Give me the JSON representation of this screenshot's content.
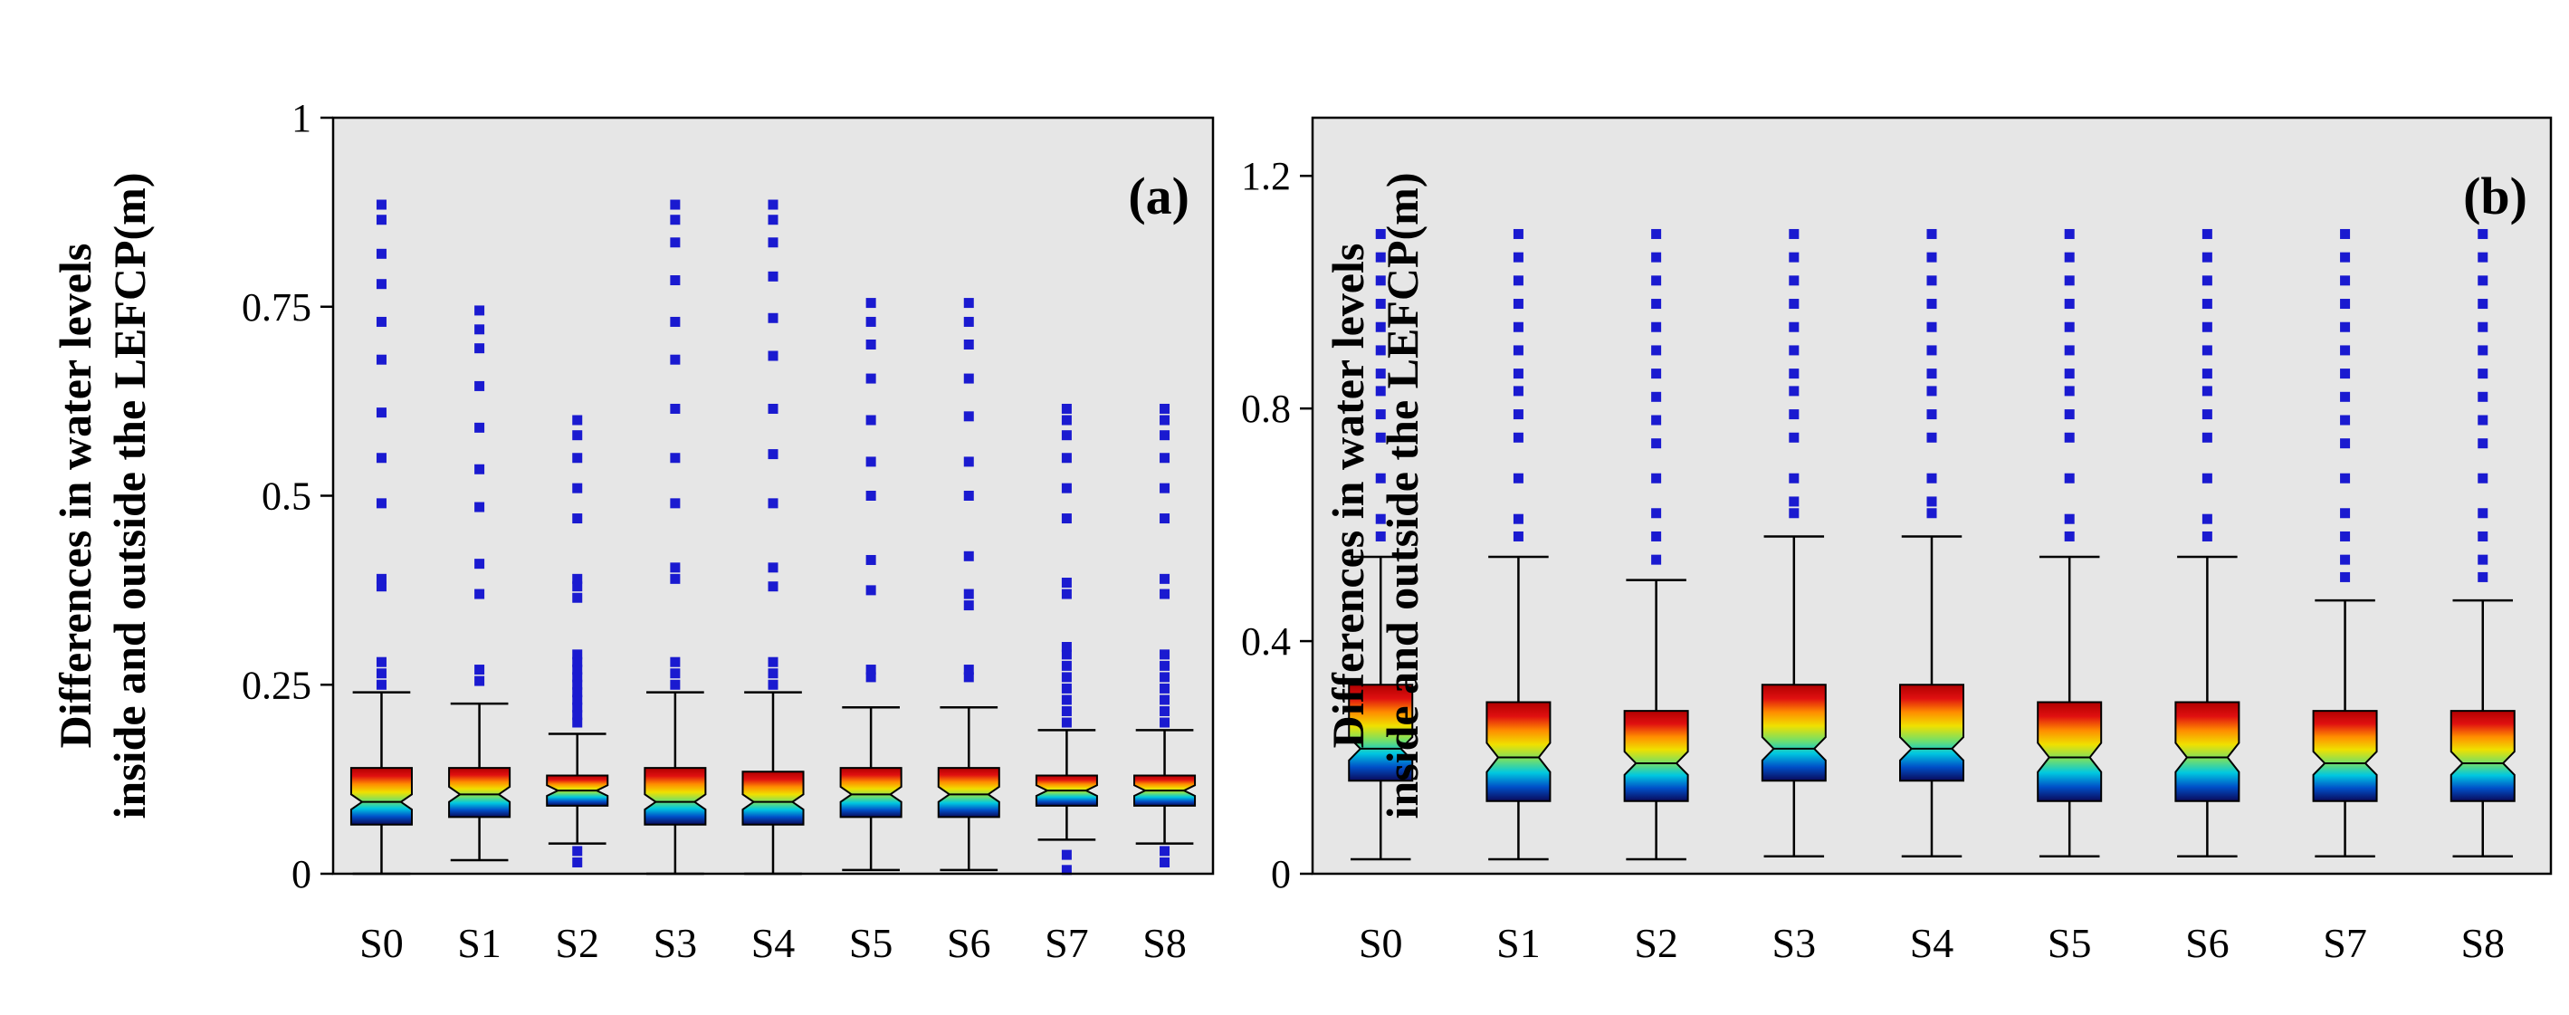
{
  "chart_data": [
    {
      "type": "boxplot",
      "panel_label": "(a)",
      "ylabel_lines": [
        "Differences in water levels",
        "inside and outside the LEFCP(m)"
      ],
      "xlabel": "",
      "ylim": [
        0,
        1
      ],
      "yticks": [
        0,
        0.25,
        0.5,
        0.75,
        1
      ],
      "ytick_labels": [
        "0",
        "0.25",
        "0.5",
        "0.75",
        "1"
      ],
      "categories": [
        "S0",
        "S1",
        "S2",
        "S3",
        "S4",
        "S5",
        "S6",
        "S7",
        "S8"
      ],
      "boxes": [
        {
          "name": "S0",
          "whisker_low": 0.0,
          "q1": 0.065,
          "median": 0.095,
          "q3": 0.14,
          "whisker_high": 0.24,
          "notch_low": 0.085,
          "notch_high": 0.105,
          "outliers": [
            0.25,
            0.265,
            0.28,
            0.38,
            0.39,
            0.49,
            0.55,
            0.61,
            0.68,
            0.73,
            0.78,
            0.82,
            0.865,
            0.885
          ]
        },
        {
          "name": "S1",
          "whisker_low": 0.018,
          "q1": 0.075,
          "median": 0.105,
          "q3": 0.14,
          "whisker_high": 0.225,
          "notch_low": 0.095,
          "notch_high": 0.115,
          "outliers": [
            0.255,
            0.27,
            0.37,
            0.41,
            0.485,
            0.535,
            0.59,
            0.645,
            0.695,
            0.72,
            0.745
          ]
        },
        {
          "name": "S2",
          "whisker_low": 0.04,
          "q1": 0.09,
          "median": 0.11,
          "q3": 0.13,
          "whisker_high": 0.185,
          "notch_low": 0.103,
          "notch_high": 0.117,
          "outliers": [
            0.015,
            0.03,
            0.2,
            0.21,
            0.22,
            0.23,
            0.24,
            0.25,
            0.26,
            0.27,
            0.28,
            0.29,
            0.365,
            0.38,
            0.39,
            0.47,
            0.51,
            0.55,
            0.58,
            0.6
          ]
        },
        {
          "name": "S3",
          "whisker_low": 0.0,
          "q1": 0.065,
          "median": 0.095,
          "q3": 0.14,
          "whisker_high": 0.24,
          "notch_low": 0.085,
          "notch_high": 0.105,
          "outliers": [
            0.25,
            0.265,
            0.28,
            0.39,
            0.405,
            0.49,
            0.55,
            0.615,
            0.68,
            0.73,
            0.785,
            0.835,
            0.865,
            0.885
          ]
        },
        {
          "name": "S4",
          "whisker_low": 0.0,
          "q1": 0.065,
          "median": 0.095,
          "q3": 0.135,
          "whisker_high": 0.24,
          "notch_low": 0.085,
          "notch_high": 0.105,
          "outliers": [
            0.25,
            0.265,
            0.28,
            0.38,
            0.405,
            0.49,
            0.555,
            0.615,
            0.685,
            0.735,
            0.79,
            0.835,
            0.865,
            0.885
          ]
        },
        {
          "name": "S5",
          "whisker_low": 0.005,
          "q1": 0.075,
          "median": 0.105,
          "q3": 0.14,
          "whisker_high": 0.22,
          "notch_low": 0.095,
          "notch_high": 0.115,
          "outliers": [
            0.26,
            0.27,
            0.375,
            0.415,
            0.5,
            0.545,
            0.6,
            0.655,
            0.7,
            0.73,
            0.755
          ]
        },
        {
          "name": "S6",
          "whisker_low": 0.005,
          "q1": 0.075,
          "median": 0.105,
          "q3": 0.14,
          "whisker_high": 0.22,
          "notch_low": 0.095,
          "notch_high": 0.115,
          "outliers": [
            0.26,
            0.27,
            0.355,
            0.37,
            0.42,
            0.5,
            0.545,
            0.605,
            0.655,
            0.7,
            0.73,
            0.755
          ]
        },
        {
          "name": "S7",
          "whisker_low": 0.045,
          "q1": 0.09,
          "median": 0.11,
          "q3": 0.13,
          "whisker_high": 0.19,
          "notch_low": 0.103,
          "notch_high": 0.117,
          "outliers": [
            0.005,
            0.025,
            0.2,
            0.215,
            0.23,
            0.245,
            0.26,
            0.275,
            0.29,
            0.3,
            0.37,
            0.385,
            0.47,
            0.51,
            0.55,
            0.58,
            0.6,
            0.615
          ]
        },
        {
          "name": "S8",
          "whisker_low": 0.04,
          "q1": 0.09,
          "median": 0.11,
          "q3": 0.13,
          "whisker_high": 0.19,
          "notch_low": 0.103,
          "notch_high": 0.117,
          "outliers": [
            0.015,
            0.03,
            0.2,
            0.215,
            0.23,
            0.245,
            0.26,
            0.275,
            0.29,
            0.37,
            0.39,
            0.47,
            0.51,
            0.55,
            0.58,
            0.6,
            0.615
          ]
        }
      ]
    },
    {
      "type": "boxplot",
      "panel_label": "(b)",
      "ylabel_lines": [
        "Differences in water levels",
        "inside and outside the LEFCP(m)"
      ],
      "xlabel": "",
      "ylim": [
        0,
        1.3
      ],
      "yticks": [
        0,
        0.4,
        0.8,
        1.2
      ],
      "ytick_labels": [
        "0",
        "0.4",
        "0.8",
        "1.2"
      ],
      "categories": [
        "S0",
        "S1",
        "S2",
        "S3",
        "S4",
        "S5",
        "S6",
        "S7",
        "S8"
      ],
      "boxes": [
        {
          "name": "S0",
          "whisker_low": 0.025,
          "q1": 0.16,
          "median": 0.215,
          "q3": 0.325,
          "whisker_high": 0.545,
          "notch_low": 0.195,
          "notch_high": 0.235,
          "outliers": [
            0.58,
            0.61,
            0.68,
            0.75,
            0.79,
            0.83,
            0.86,
            0.9,
            0.94,
            0.98,
            1.02,
            1.06,
            1.1
          ]
        },
        {
          "name": "S1",
          "whisker_low": 0.025,
          "q1": 0.125,
          "median": 0.2,
          "q3": 0.295,
          "whisker_high": 0.545,
          "notch_low": 0.175,
          "notch_high": 0.225,
          "outliers": [
            0.58,
            0.61,
            0.68,
            0.75,
            0.79,
            0.83,
            0.86,
            0.9,
            0.94,
            0.98,
            1.02,
            1.06,
            1.1
          ]
        },
        {
          "name": "S2",
          "whisker_low": 0.025,
          "q1": 0.125,
          "median": 0.19,
          "q3": 0.28,
          "whisker_high": 0.505,
          "notch_low": 0.17,
          "notch_high": 0.21,
          "outliers": [
            0.54,
            0.58,
            0.62,
            0.68,
            0.74,
            0.78,
            0.82,
            0.86,
            0.9,
            0.94,
            0.98,
            1.02,
            1.06,
            1.1
          ]
        },
        {
          "name": "S3",
          "whisker_low": 0.03,
          "q1": 0.16,
          "median": 0.215,
          "q3": 0.325,
          "whisker_high": 0.58,
          "notch_low": 0.195,
          "notch_high": 0.235,
          "outliers": [
            0.62,
            0.64,
            0.68,
            0.75,
            0.79,
            0.83,
            0.86,
            0.9,
            0.94,
            0.98,
            1.02,
            1.06,
            1.1
          ]
        },
        {
          "name": "S4",
          "whisker_low": 0.03,
          "q1": 0.16,
          "median": 0.215,
          "q3": 0.325,
          "whisker_high": 0.58,
          "notch_low": 0.195,
          "notch_high": 0.235,
          "outliers": [
            0.62,
            0.64,
            0.68,
            0.75,
            0.79,
            0.83,
            0.86,
            0.9,
            0.94,
            0.98,
            1.02,
            1.06,
            1.1
          ]
        },
        {
          "name": "S5",
          "whisker_low": 0.03,
          "q1": 0.125,
          "median": 0.2,
          "q3": 0.295,
          "whisker_high": 0.545,
          "notch_low": 0.175,
          "notch_high": 0.225,
          "outliers": [
            0.58,
            0.61,
            0.68,
            0.75,
            0.79,
            0.83,
            0.86,
            0.9,
            0.94,
            0.98,
            1.02,
            1.06,
            1.1
          ]
        },
        {
          "name": "S6",
          "whisker_low": 0.03,
          "q1": 0.125,
          "median": 0.2,
          "q3": 0.295,
          "whisker_high": 0.545,
          "notch_low": 0.175,
          "notch_high": 0.225,
          "outliers": [
            0.58,
            0.61,
            0.68,
            0.75,
            0.79,
            0.83,
            0.86,
            0.9,
            0.94,
            0.98,
            1.02,
            1.06,
            1.1
          ]
        },
        {
          "name": "S7",
          "whisker_low": 0.03,
          "q1": 0.125,
          "median": 0.19,
          "q3": 0.28,
          "whisker_high": 0.47,
          "notch_low": 0.17,
          "notch_high": 0.21,
          "outliers": [
            0.51,
            0.54,
            0.58,
            0.62,
            0.68,
            0.74,
            0.78,
            0.82,
            0.86,
            0.9,
            0.94,
            0.98,
            1.02,
            1.06,
            1.1
          ]
        },
        {
          "name": "S8",
          "whisker_low": 0.03,
          "q1": 0.125,
          "median": 0.19,
          "q3": 0.28,
          "whisker_high": 0.47,
          "notch_low": 0.17,
          "notch_high": 0.21,
          "outliers": [
            0.51,
            0.54,
            0.58,
            0.62,
            0.68,
            0.74,
            0.78,
            0.82,
            0.86,
            0.9,
            0.94,
            0.98,
            1.02,
            1.06,
            1.1
          ]
        }
      ]
    }
  ],
  "colors": {
    "plot_background": "#e6e6e6",
    "outlier": "#1a1ad0",
    "box_gradient": [
      "#0a0a5a",
      "#0050c8",
      "#00c8e0",
      "#7ce060",
      "#f0e000",
      "#ff8c00",
      "#e01010",
      "#b00000"
    ],
    "axis": "#000000"
  }
}
